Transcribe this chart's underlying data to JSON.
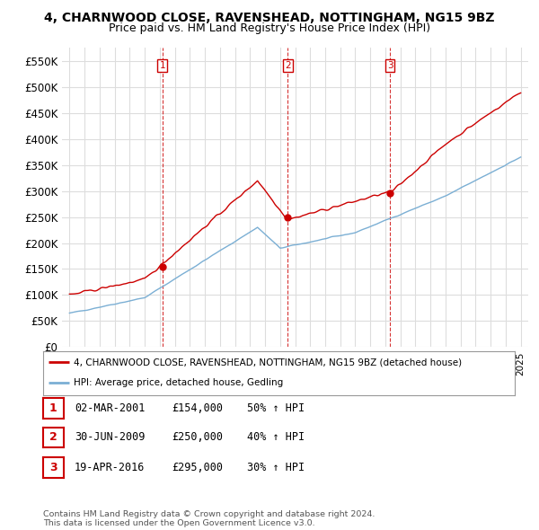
{
  "title": "4, CHARNWOOD CLOSE, RAVENSHEAD, NOTTINGHAM, NG15 9BZ",
  "subtitle": "Price paid vs. HM Land Registry's House Price Index (HPI)",
  "ylim": [
    0,
    575000
  ],
  "yticks": [
    0,
    50000,
    100000,
    150000,
    200000,
    250000,
    300000,
    350000,
    400000,
    450000,
    500000,
    550000
  ],
  "ytick_labels": [
    "£0",
    "£50K",
    "£100K",
    "£150K",
    "£200K",
    "£250K",
    "£300K",
    "£350K",
    "£400K",
    "£450K",
    "£500K",
    "£550K"
  ],
  "xlim_start": 1994.5,
  "xlim_end": 2025.5,
  "property_color": "#cc0000",
  "hpi_color": "#7bafd4",
  "vline_color": "#cc0000",
  "background_color": "#ffffff",
  "grid_color": "#dddddd",
  "legend_property": "4, CHARNWOOD CLOSE, RAVENSHEAD, NOTTINGHAM, NG15 9BZ (detached house)",
  "legend_hpi": "HPI: Average price, detached house, Gedling",
  "sale_points": [
    {
      "label": "1",
      "date_x": 2001.17,
      "price": 154000
    },
    {
      "label": "2",
      "date_x": 2009.5,
      "price": 250000
    },
    {
      "label": "3",
      "date_x": 2016.3,
      "price": 295000
    }
  ],
  "table_rows": [
    {
      "num": "1",
      "date": "02-MAR-2001",
      "price": "£154,000",
      "hpi": "50% ↑ HPI"
    },
    {
      "num": "2",
      "date": "30-JUN-2009",
      "price": "£250,000",
      "hpi": "40% ↑ HPI"
    },
    {
      "num": "3",
      "date": "19-APR-2016",
      "price": "£295,000",
      "hpi": "30% ↑ HPI"
    }
  ],
  "footer": "Contains HM Land Registry data © Crown copyright and database right 2024.\nThis data is licensed under the Open Government Licence v3.0."
}
